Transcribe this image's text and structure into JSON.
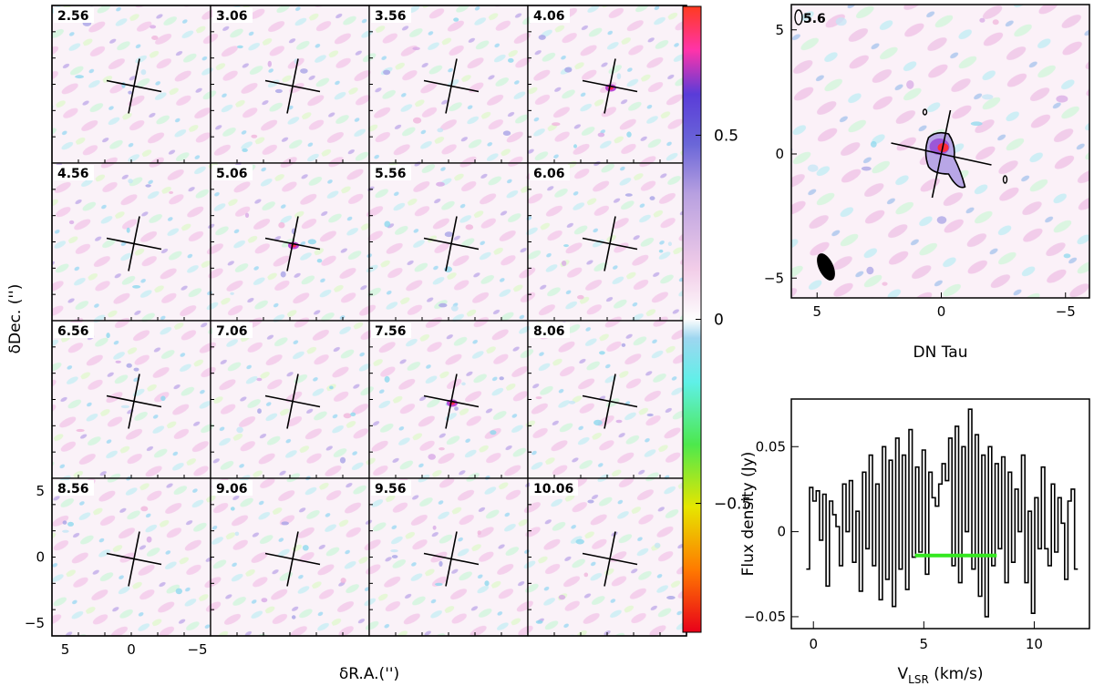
{
  "chart_data": [
    {
      "type": "heatmap",
      "panels": [
        "2.56",
        "3.06",
        "3.56",
        "4.06",
        "4.56",
        "5.06",
        "5.56",
        "6.06",
        "6.56",
        "7.06",
        "7.56",
        "8.06",
        "8.56",
        "9.06",
        "9.56",
        "10.06"
      ],
      "panel_hotspots": {
        "5.06": 0.7,
        "7.56": 0.65,
        "4.06": 0.6
      },
      "xlabel": "δR.A.('')",
      "ylabel": "δDec. ('')",
      "x_ticks": [
        "5",
        "0",
        "−5"
      ],
      "y_ticks": [
        "5",
        "0",
        "−5"
      ],
      "xlim": [
        6,
        -6
      ],
      "ylim": [
        -6,
        6
      ]
    },
    {
      "type": "heatmap",
      "title": "DN Tau",
      "channel_label": "5.6",
      "xlim": [
        6,
        -6
      ],
      "ylim": [
        -6,
        6
      ],
      "x_ticks": [
        "5",
        "0",
        "−5"
      ],
      "y_ticks": [
        "5",
        "0",
        "−5"
      ],
      "colorbar": {
        "ticks": [
          "0.5",
          "0",
          "−0.5"
        ],
        "range": [
          -0.85,
          0.85
        ]
      }
    },
    {
      "type": "line",
      "xlabel_main": "V",
      "xlabel_sub": "LSR",
      "xlabel_unit": "(km/s)",
      "ylabel": "Flux density (Jy)",
      "xlim": [
        -1,
        12.5
      ],
      "ylim": [
        -0.057,
        0.078
      ],
      "x_ticks": [
        "0",
        "5",
        "10"
      ],
      "y_ticks": [
        "0.05",
        "0",
        "−0.05"
      ],
      "integration_range": [
        4.6,
        8.3
      ],
      "integration_y": -0.014,
      "x": [
        -0.25,
        -0.1,
        0.05,
        0.2,
        0.35,
        0.5,
        0.65,
        0.8,
        0.95,
        1.1,
        1.25,
        1.4,
        1.55,
        1.7,
        1.85,
        2.0,
        2.15,
        2.3,
        2.45,
        2.6,
        2.75,
        2.9,
        3.05,
        3.2,
        3.35,
        3.5,
        3.65,
        3.8,
        3.95,
        4.1,
        4.25,
        4.4,
        4.55,
        4.7,
        4.85,
        5.0,
        5.15,
        5.3,
        5.45,
        5.6,
        5.75,
        5.9,
        6.05,
        6.2,
        6.35,
        6.5,
        6.65,
        6.8,
        6.95,
        7.1,
        7.25,
        7.4,
        7.55,
        7.7,
        7.85,
        8.0,
        8.15,
        8.3,
        8.45,
        8.6,
        8.75,
        8.9,
        9.05,
        9.2,
        9.35,
        9.5,
        9.65,
        9.8,
        9.95,
        10.1,
        10.25,
        10.4,
        10.55,
        10.7,
        10.85,
        11.0,
        11.15,
        11.3,
        11.45,
        11.6,
        11.75,
        11.9
      ],
      "y": [
        -0.022,
        0.026,
        0.018,
        0.024,
        -0.005,
        0.022,
        -0.032,
        0.018,
        0.01,
        0.003,
        -0.02,
        0.028,
        0.0,
        0.03,
        -0.018,
        0.012,
        -0.035,
        0.035,
        -0.01,
        0.045,
        -0.02,
        0.028,
        -0.04,
        0.05,
        -0.028,
        0.042,
        -0.044,
        0.055,
        -0.022,
        0.045,
        -0.034,
        0.06,
        -0.015,
        0.038,
        -0.012,
        0.048,
        -0.025,
        0.035,
        0.02,
        0.015,
        0.028,
        0.04,
        0.03,
        0.055,
        -0.02,
        0.062,
        -0.03,
        0.05,
        0.0,
        0.072,
        -0.022,
        0.057,
        -0.038,
        0.045,
        -0.05,
        0.05,
        -0.02,
        0.04,
        -0.01,
        0.044,
        -0.03,
        0.035,
        -0.018,
        0.025,
        0.0,
        0.045,
        -0.03,
        0.012,
        -0.048,
        0.02,
        -0.01,
        0.038,
        -0.01,
        -0.02,
        0.028,
        -0.012,
        0.02,
        0.005,
        -0.028,
        0.018,
        0.025,
        -0.022
      ]
    }
  ]
}
